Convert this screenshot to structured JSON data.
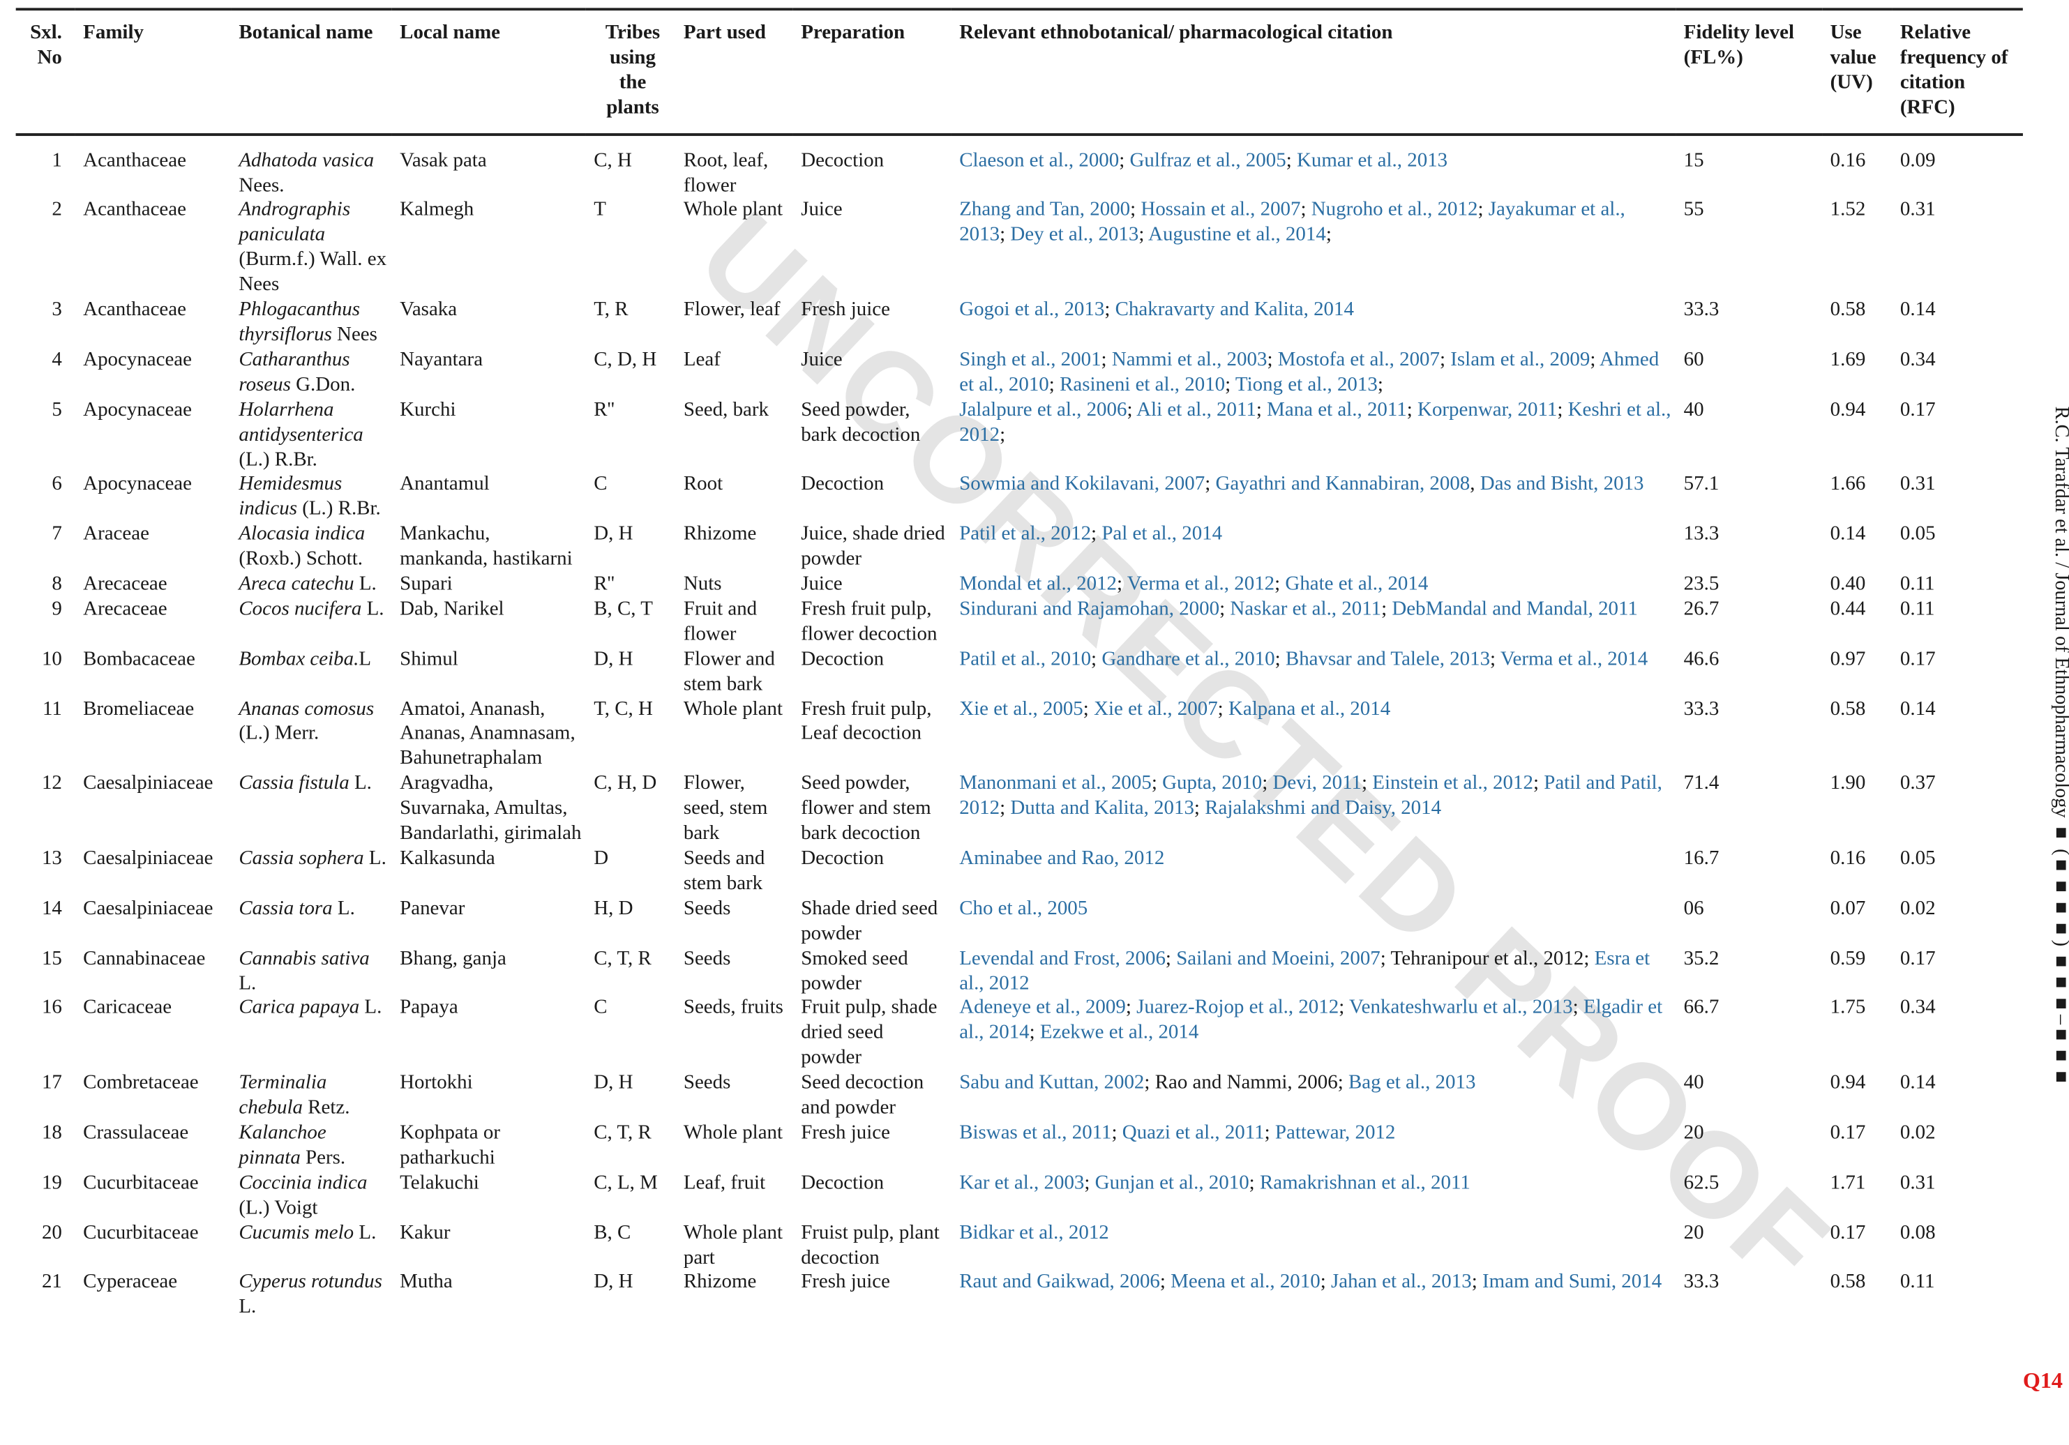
{
  "header": {
    "no": "Sxl. No",
    "family": "Family",
    "botanical": "Botanical name",
    "local": "Local name",
    "tribes": "Tribes using the plants",
    "part": "Part used",
    "preparation": "Preparation",
    "citation": "Relevant ethnobotanical/ pharmacological citation",
    "fl": "Fidelity level (FL%)",
    "uv": "Use value (UV)",
    "rfc": "Relative frequency of citation (RFC)"
  },
  "watermark": "UNCORRECTED PROOF",
  "running_head": "R.C. Tarafdar et al. / Journal of Ethnopharmacology ■ (■■■■) ■■■–■■■",
  "query_mark": "Q14",
  "colors": {
    "link": "#2b6ea3",
    "query": "#e01b1b",
    "watermark": "#e4e4e4"
  },
  "rows": [
    {
      "no": "1",
      "family": "Acanthaceae",
      "species": "Adhatoda vasica",
      "authority": " Nees.",
      "local": "Vasak pata",
      "tribes": "C, H",
      "part": "Root, leaf, flower",
      "prep": "Decoction",
      "citations": [
        {
          "text": "Claeson et al., 2000",
          "link": true,
          "sep": "; "
        },
        {
          "text": "Gulfraz et al., 2005",
          "link": true,
          "sep": "; "
        },
        {
          "text": "Kumar et al., 2013",
          "link": true,
          "sep": ""
        }
      ],
      "fl": "15",
      "uv": "0.16",
      "rfc": "0.09"
    },
    {
      "no": "2",
      "family": "Acanthaceae",
      "species": "Andrographis paniculata",
      "authority": " (Burm.f.) Wall. ex Nees",
      "local": "Kalmegh",
      "tribes": "T",
      "part": "Whole plant",
      "prep": "Juice",
      "citations": [
        {
          "text": "Zhang and Tan, 2000",
          "link": true,
          "sep": "; "
        },
        {
          "text": "Hossain et al., 2007",
          "link": true,
          "sep": "; "
        },
        {
          "text": "Nugroho et al., 2012",
          "link": true,
          "sep": "; "
        },
        {
          "text": "Jayakumar et al., 2013",
          "link": true,
          "sep": "; "
        },
        {
          "text": "Dey et al., 2013",
          "link": true,
          "sep": "; "
        },
        {
          "text": "Augustine et al., 2014",
          "link": true,
          "sep": ";"
        }
      ],
      "fl": "55",
      "uv": "1.52",
      "rfc": "0.31"
    },
    {
      "no": "3",
      "family": "Acanthaceae",
      "species": "Phlogacanthus thyrsiflorus",
      "authority": " Nees",
      "local": "Vasaka",
      "tribes": "T, R",
      "part": "Flower, leaf",
      "prep": "Fresh juice",
      "citations": [
        {
          "text": "Gogoi et al., 2013",
          "link": true,
          "sep": "; "
        },
        {
          "text": "Chakravarty and Kalita, 2014",
          "link": true,
          "sep": ""
        }
      ],
      "fl": "33.3",
      "uv": "0.58",
      "rfc": "0.14"
    },
    {
      "no": "4",
      "family": "Apocynaceae",
      "species": "Catharanthus roseus",
      "authority": " G.Don.",
      "local": "Nayantara",
      "tribes": "C, D, H",
      "part": "Leaf",
      "prep": "Juice",
      "citations": [
        {
          "text": "Singh et al., 2001",
          "link": true,
          "sep": "; "
        },
        {
          "text": "Nammi et al., 2003",
          "link": true,
          "sep": "; "
        },
        {
          "text": "Mostofa et al., 2007",
          "link": true,
          "sep": "; "
        },
        {
          "text": "Islam et al., 2009",
          "link": true,
          "sep": "; "
        },
        {
          "text": "Ahmed et al., 2010",
          "link": true,
          "sep": "; "
        },
        {
          "text": "Rasineni et al., 2010",
          "link": true,
          "sep": "; "
        },
        {
          "text": "Tiong et al., 2013",
          "link": true,
          "sep": ";"
        }
      ],
      "fl": "60",
      "uv": "1.69",
      "rfc": "0.34"
    },
    {
      "no": "5",
      "family": "Apocynaceae",
      "species": "Holarrhena antidysenterica",
      "authority": " (L.) R.Br.",
      "local": "Kurchi",
      "tribes": "R''",
      "part": "Seed, bark",
      "prep": "Seed powder, bark decoction",
      "citations": [
        {
          "text": "Jalalpure et al., 2006",
          "link": true,
          "sep": "; "
        },
        {
          "text": "Ali et al., 2011",
          "link": true,
          "sep": "; "
        },
        {
          "text": "Mana et al., 2011",
          "link": true,
          "sep": "; "
        },
        {
          "text": "Korpenwar, 2011",
          "link": true,
          "sep": "; "
        },
        {
          "text": "Keshri et al., 2012",
          "link": true,
          "sep": ";"
        }
      ],
      "fl": "40",
      "uv": "0.94",
      "rfc": "0.17"
    },
    {
      "no": "6",
      "family": "Apocynaceae",
      "species": "Hemidesmus indicus",
      "authority": " (L.) R.Br.",
      "local": "Anantamul",
      "tribes": "C",
      "part": "Root",
      "prep": "Decoction",
      "citations": [
        {
          "text": "Sowmia and Kokilavani, 2007",
          "link": true,
          "sep": "; "
        },
        {
          "text": "Gayathri and Kannabiran, 2008",
          "link": true,
          "sep": ", "
        },
        {
          "text": "Das and Bisht, 2013",
          "link": true,
          "sep": ""
        }
      ],
      "fl": "57.1",
      "uv": "1.66",
      "rfc": "0.31"
    },
    {
      "no": "7",
      "family": "Araceae",
      "species": "Alocasia indica",
      "authority": " (Roxb.) Schott.",
      "local": "Mankachu, mankanda, hastikarni",
      "tribes": "D, H",
      "part": "Rhizome",
      "prep": "Juice, shade dried powder",
      "citations": [
        {
          "text": "Patil et al., 2012",
          "link": true,
          "sep": "; "
        },
        {
          "text": "Pal et al., 2014",
          "link": true,
          "sep": ""
        }
      ],
      "fl": "13.3",
      "uv": "0.14",
      "rfc": "0.05"
    },
    {
      "no": "8",
      "family": "Arecaceae",
      "species": "Areca catechu",
      "authority": " L.",
      "local": "Supari",
      "tribes": "R''",
      "part": "Nuts",
      "prep": "Juice",
      "citations": [
        {
          "text": "Mondal et al., 2012",
          "link": true,
          "sep": "; "
        },
        {
          "text": "Verma et al., 2012",
          "link": true,
          "sep": "; "
        },
        {
          "text": "Ghate et al., 2014",
          "link": true,
          "sep": ""
        }
      ],
      "fl": "23.5",
      "uv": "0.40",
      "rfc": "0.11"
    },
    {
      "no": "9",
      "family": "Arecaceae",
      "species": "Cocos nucifera",
      "authority": " L.",
      "local": "Dab, Narikel",
      "tribes": "B, C, T",
      "part": "Fruit and flower",
      "prep": "Fresh fruit pulp, flower decoction",
      "citations": [
        {
          "text": "Sindurani and Rajamohan, 2000",
          "link": true,
          "sep": "; "
        },
        {
          "text": "Naskar et al., 2011",
          "link": true,
          "sep": "; "
        },
        {
          "text": "DebMandal and Mandal, 2011",
          "link": true,
          "sep": ""
        }
      ],
      "fl": "26.7",
      "uv": "0.44",
      "rfc": "0.11"
    },
    {
      "no": "10",
      "family": "Bombacaceae",
      "species": "Bombax ceiba.",
      "authority": "L",
      "local": "Shimul",
      "tribes": "D, H",
      "part": "Flower and stem bark",
      "prep": "Decoction",
      "citations": [
        {
          "text": "Patil et al., 2010",
          "link": true,
          "sep": "; "
        },
        {
          "text": "Gandhare et al., 2010",
          "link": true,
          "sep": "; "
        },
        {
          "text": "Bhavsar and Talele, 2013",
          "link": true,
          "sep": "; "
        },
        {
          "text": "Verma et al., 2014",
          "link": true,
          "sep": ""
        }
      ],
      "fl": "46.6",
      "uv": "0.97",
      "rfc": "0.17"
    },
    {
      "no": "11",
      "family": "Bromeliaceae",
      "species": "Ananas comosus",
      "authority": " (L.) Merr.",
      "local": "Amatoi, Ananash, Ananas, Anamnasam, Bahunetraphalam",
      "tribes": "T, C, H",
      "part": "Whole plant",
      "prep": "Fresh fruit pulp, Leaf decoction",
      "citations": [
        {
          "text": "Xie et al., 2005",
          "link": true,
          "sep": "; "
        },
        {
          "text": "Xie et al., 2007",
          "link": true,
          "sep": "; "
        },
        {
          "text": "Kalpana et al., 2014",
          "link": true,
          "sep": ""
        }
      ],
      "fl": "33.3",
      "uv": "0.58",
      "rfc": "0.14"
    },
    {
      "no": "12",
      "family": "Caesalpiniaceae",
      "species": "Cassia fistula",
      "authority": " L.",
      "local": "Aragvadha, Suvarnaka, Amultas, Bandarlathi, girimalah",
      "tribes": "C, H, D",
      "part": "Flower, seed, stem bark",
      "prep": "Seed powder, flower and stem bark decoction",
      "citations": [
        {
          "text": "Manonmani et al., 2005",
          "link": true,
          "sep": "; "
        },
        {
          "text": "Gupta, 2010",
          "link": true,
          "sep": "; "
        },
        {
          "text": "Devi, 2011",
          "link": true,
          "sep": "; "
        },
        {
          "text": "Einstein et al., 2012",
          "link": true,
          "sep": "; "
        },
        {
          "text": "Patil and Patil, 2012",
          "link": true,
          "sep": "; "
        },
        {
          "text": "Dutta and Kalita, 2013",
          "link": true,
          "sep": "; "
        },
        {
          "text": "Rajalakshmi and Daisy, 2014",
          "link": true,
          "sep": ""
        }
      ],
      "fl": "71.4",
      "uv": "1.90",
      "rfc": "0.37"
    },
    {
      "no": "13",
      "family": "Caesalpiniaceae",
      "species": "Cassia sophera",
      "authority": " L.",
      "local": "Kalkasunda",
      "tribes": "D",
      "part": "Seeds and stem bark",
      "prep": "Decoction",
      "citations": [
        {
          "text": "Aminabee and Rao, 2012",
          "link": true,
          "sep": ""
        }
      ],
      "fl": "16.7",
      "uv": "0.16",
      "rfc": "0.05"
    },
    {
      "no": "14",
      "family": "Caesalpiniaceae",
      "species": "Cassia tora",
      "authority": " L.",
      "local": "Panevar",
      "tribes": "H, D",
      "part": "Seeds",
      "prep": "Shade dried seed powder",
      "citations": [
        {
          "text": "Cho et al., 2005",
          "link": true,
          "sep": ""
        }
      ],
      "fl": "06",
      "uv": "0.07",
      "rfc": "0.02"
    },
    {
      "no": "15",
      "family": "Cannabinaceae",
      "species": "Cannabis sativa",
      "authority": " L.",
      "local": "Bhang, ganja",
      "tribes": "C, T, R",
      "part": "Seeds",
      "prep": "Smoked seed powder",
      "citations": [
        {
          "text": "Levendal and Frost, 2006",
          "link": true,
          "sep": "; "
        },
        {
          "text": "Sailani and Moeini, 2007",
          "link": true,
          "sep": "; "
        },
        {
          "text": "Tehranipour et al., 2012",
          "link": false,
          "sep": "; "
        },
        {
          "text": "Esra et al., 2012",
          "link": true,
          "sep": ""
        }
      ],
      "fl": "35.2",
      "uv": "0.59",
      "rfc": "0.17"
    },
    {
      "no": "16",
      "family": "Caricaceae",
      "species": "Carica papaya",
      "authority": " L.",
      "local": "Papaya",
      "tribes": "C",
      "part": "Seeds, fruits",
      "prep": "Fruit pulp, shade dried seed powder",
      "citations": [
        {
          "text": "Adeneye et al., 2009",
          "link": true,
          "sep": "; "
        },
        {
          "text": "Juarez-Rojop et al., 2012",
          "link": true,
          "sep": "; "
        },
        {
          "text": "Venkateshwarlu et al., 2013",
          "link": true,
          "sep": "; "
        },
        {
          "text": "Elgadir et al., 2014",
          "link": true,
          "sep": "; "
        },
        {
          "text": "Ezekwe et al., 2014",
          "link": true,
          "sep": ""
        }
      ],
      "fl": "66.7",
      "uv": "1.75",
      "rfc": "0.34"
    },
    {
      "no": "17",
      "family": "Combretaceae",
      "species": "Terminalia chebula",
      "authority": " Retz.",
      "local": "Hortokhi",
      "tribes": "D, H",
      "part": "Seeds",
      "prep": "Seed decoction and powder",
      "citations": [
        {
          "text": "Sabu and Kuttan, 2002",
          "link": true,
          "sep": "; "
        },
        {
          "text": "Rao and Nammi, 2006",
          "link": false,
          "sep": "; "
        },
        {
          "text": "Bag et al., 2013",
          "link": true,
          "sep": ""
        }
      ],
      "fl": "40",
      "uv": "0.94",
      "rfc": "0.14"
    },
    {
      "no": "18",
      "family": "Crassulaceae",
      "species": "Kalanchoe pinnata",
      "authority": " Pers.",
      "local": "Kophpata or patharkuchi",
      "tribes": "C, T, R",
      "part": "Whole plant",
      "prep": "Fresh juice",
      "citations": [
        {
          "text": "Biswas et al., 2011",
          "link": true,
          "sep": "; "
        },
        {
          "text": "Quazi et al., 2011",
          "link": true,
          "sep": "; "
        },
        {
          "text": "Pattewar, 2012",
          "link": true,
          "sep": ""
        }
      ],
      "fl": "20",
      "uv": "0.17",
      "rfc": "0.02"
    },
    {
      "no": "19",
      "family": "Cucurbitaceae",
      "species": "Coccinia indica",
      "authority": " (L.) Voigt",
      "local": "Telakuchi",
      "tribes": "C, L, M",
      "part": "Leaf, fruit",
      "prep": "Decoction",
      "citations": [
        {
          "text": "Kar et al., 2003",
          "link": true,
          "sep": "; "
        },
        {
          "text": "Gunjan et al., 2010",
          "link": true,
          "sep": "; "
        },
        {
          "text": "Ramakrishnan et al., 2011",
          "link": true,
          "sep": ""
        }
      ],
      "fl": "62.5",
      "uv": "1.71",
      "rfc": "0.31"
    },
    {
      "no": "20",
      "family": "Cucurbitaceae",
      "species": "Cucumis melo",
      "authority": " L.",
      "local": "Kakur",
      "tribes": "B, C",
      "part": "Whole plant part",
      "prep": "Fruist pulp, plant decoction",
      "citations": [
        {
          "text": "Bidkar et al., 2012",
          "link": true,
          "sep": ""
        }
      ],
      "fl": "20",
      "uv": "0.17",
      "rfc": "0.08"
    },
    {
      "no": "21",
      "family": "Cyperaceae",
      "species": "Cyperus rotundus",
      "authority": " L.",
      "local": "Mutha",
      "tribes": "D, H",
      "part": "Rhizome",
      "prep": "Fresh juice",
      "citations": [
        {
          "text": "Raut and Gaikwad, 2006",
          "link": true,
          "sep": "; "
        },
        {
          "text": "Meena et al., 2010",
          "link": true,
          "sep": "; "
        },
        {
          "text": "Jahan et al., 2013",
          "link": true,
          "sep": "; "
        },
        {
          "text": "Imam and Sumi, 2014",
          "link": true,
          "sep": ""
        }
      ],
      "fl": "33.3",
      "uv": "0.58",
      "rfc": "0.11"
    }
  ]
}
